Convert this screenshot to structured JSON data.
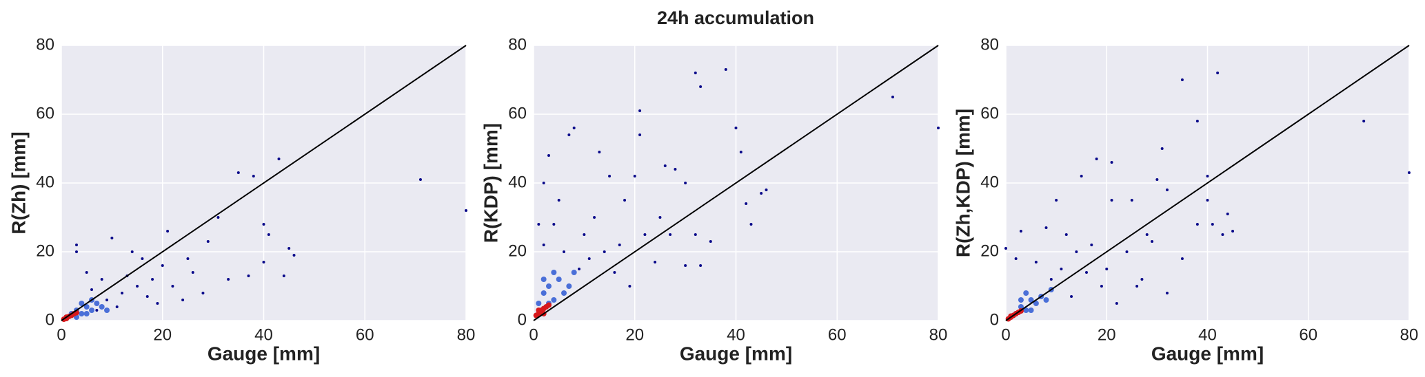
{
  "title": "24h accumulation",
  "chart_data": [
    {
      "type": "scatter",
      "xlabel": "Gauge [mm]",
      "ylabel": "R(Zh) [mm]",
      "xlim": [
        0,
        80
      ],
      "ylim": [
        0,
        80
      ],
      "xticks": [
        0,
        20,
        40,
        60,
        80
      ],
      "yticks": [
        0,
        20,
        40,
        60,
        80
      ],
      "grid": true,
      "identity_line": true,
      "series": [
        {
          "color": "#0a0a8a",
          "x": [
            3,
            3,
            10,
            21,
            35,
            38,
            43,
            71,
            80,
            40,
            41,
            40,
            44,
            45,
            46,
            31,
            29,
            25,
            20,
            18,
            15,
            12,
            14,
            16,
            22,
            26,
            28,
            33,
            37,
            24,
            19,
            8,
            9,
            6,
            11,
            13,
            17,
            7,
            5
          ],
          "values": [
            22,
            20,
            24,
            26,
            43,
            42,
            47,
            41,
            32,
            28,
            25,
            17,
            13,
            21,
            19,
            30,
            23,
            18,
            16,
            12,
            10,
            8,
            20,
            18,
            10,
            14,
            8,
            12,
            13,
            6,
            5,
            12,
            6,
            9,
            4,
            13,
            7,
            3,
            14
          ]
        },
        {
          "color": "#4a6fd8",
          "x": [
            2,
            3,
            4,
            5,
            6,
            7,
            8,
            4,
            3,
            9,
            6,
            5
          ],
          "values": [
            2,
            3,
            2,
            4,
            3,
            5,
            4,
            5,
            1,
            3,
            6,
            2
          ]
        },
        {
          "color": "#d7191c",
          "x": [
            1,
            1.5,
            2,
            0.5,
            2.5,
            1,
            3
          ],
          "values": [
            1,
            1.2,
            1.5,
            0.4,
            2,
            0.6,
            2.3
          ]
        }
      ]
    },
    {
      "type": "scatter",
      "xlabel": "Gauge [mm]",
      "ylabel": "R(KDP) [mm]",
      "xlim": [
        0,
        80
      ],
      "ylim": [
        0,
        80
      ],
      "xticks": [
        0,
        20,
        40,
        60,
        80
      ],
      "yticks": [
        0,
        20,
        40,
        60,
        80
      ],
      "grid": true,
      "identity_line": true,
      "series": [
        {
          "color": "#0a0a8a",
          "x": [
            32,
            38,
            33,
            71,
            80,
            40,
            8,
            7,
            21,
            21,
            13,
            3,
            2,
            15,
            20,
            26,
            28,
            30,
            32,
            42,
            45,
            46,
            43,
            35,
            30,
            33,
            25,
            18,
            12,
            10,
            5,
            4,
            6,
            9,
            14,
            17,
            22,
            27,
            16,
            11,
            19,
            24,
            41,
            1,
            2
          ],
          "values": [
            72,
            73,
            68,
            65,
            56,
            56,
            56,
            54,
            61,
            54,
            49,
            48,
            22,
            42,
            42,
            45,
            44,
            40,
            25,
            34,
            37,
            38,
            28,
            23,
            16,
            16,
            30,
            35,
            30,
            25,
            35,
            28,
            20,
            15,
            20,
            22,
            25,
            25,
            14,
            18,
            10,
            17,
            49,
            28,
            40
          ]
        },
        {
          "color": "#4a6fd8",
          "x": [
            2,
            3,
            4,
            5,
            6,
            3,
            7,
            8,
            4,
            1,
            2
          ],
          "values": [
            8,
            10,
            6,
            12,
            8,
            5,
            10,
            14,
            14,
            5,
            12
          ]
        },
        {
          "color": "#d7191c",
          "x": [
            1,
            1.5,
            2,
            0.5,
            2.5,
            1,
            3,
            2
          ],
          "values": [
            2,
            3,
            3.5,
            1.5,
            4,
            3,
            4.5,
            2
          ]
        }
      ]
    },
    {
      "type": "scatter",
      "xlabel": "Gauge [mm]",
      "ylabel": "R(Zh,KDP) [mm]",
      "xlim": [
        0,
        80
      ],
      "ylim": [
        0,
        80
      ],
      "xticks": [
        0,
        20,
        40,
        60,
        80
      ],
      "yticks": [
        0,
        20,
        40,
        60,
        80
      ],
      "grid": true,
      "identity_line": true,
      "series": [
        {
          "color": "#0a0a8a",
          "x": [
            35,
            42,
            38,
            71,
            80,
            31,
            40,
            40,
            41,
            43,
            44,
            45,
            38,
            30,
            32,
            25,
            21,
            21,
            18,
            15,
            10,
            8,
            3,
            0,
            2,
            12,
            14,
            17,
            20,
            24,
            27,
            32,
            26,
            22,
            19,
            16,
            11,
            6,
            9,
            13,
            28,
            29,
            35
          ],
          "values": [
            70,
            72,
            58,
            58,
            43,
            50,
            42,
            35,
            28,
            25,
            31,
            26,
            28,
            41,
            38,
            35,
            35,
            46,
            47,
            42,
            35,
            27,
            26,
            21,
            18,
            25,
            20,
            22,
            15,
            20,
            12,
            8,
            10,
            5,
            10,
            14,
            15,
            17,
            12,
            7,
            25,
            23,
            18
          ]
        },
        {
          "color": "#4a6fd8",
          "x": [
            2,
            3,
            4,
            5,
            6,
            7,
            4,
            8,
            3,
            5,
            9
          ],
          "values": [
            2,
            4,
            3,
            6,
            5,
            7,
            8,
            6,
            6,
            3,
            9
          ]
        },
        {
          "color": "#d7191c",
          "x": [
            1,
            1.5,
            2,
            0.5,
            2.5,
            1,
            3
          ],
          "values": [
            1,
            1.5,
            2,
            0.5,
            2.4,
            1.3,
            2.8
          ]
        }
      ]
    }
  ]
}
